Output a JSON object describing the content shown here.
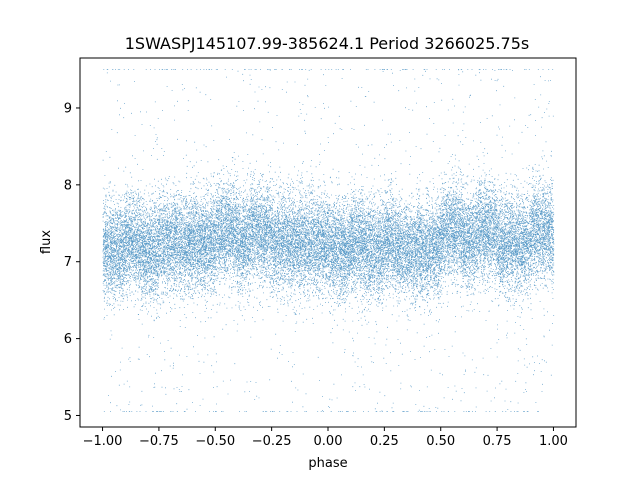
{
  "chart_data": {
    "type": "scatter",
    "title": "1SWASPJ145107.99-385624.1 Period 3266025.75s",
    "xlabel": "phase",
    "ylabel": "flux",
    "xlim": [
      -1.1,
      1.1
    ],
    "ylim": [
      4.85,
      9.65
    ],
    "x_ticks": [
      -1.0,
      -0.75,
      -0.5,
      -0.25,
      0.0,
      0.25,
      0.5,
      0.75,
      1.0
    ],
    "x_tick_labels": [
      "−1.00",
      "−0.75",
      "−0.50",
      "−0.25",
      "0.00",
      "0.25",
      "0.50",
      "0.75",
      "1.00"
    ],
    "y_ticks": [
      5,
      6,
      7,
      8,
      9
    ],
    "y_tick_labels": [
      "5",
      "6",
      "7",
      "8",
      "9"
    ],
    "grid": false,
    "legend": "none",
    "marker_color": "#1f77b4",
    "series": [
      {
        "points_estimated_count": 30000,
        "x_range": [
          -1.0,
          1.0
        ],
        "core_band": [
          6.6,
          7.85
        ],
        "median_flux": 7.25,
        "outlier_range": [
          5.05,
          9.5
        ],
        "brighter_phase_bins": [
          -0.45,
          -0.3,
          0.55,
          0.7,
          0.95
        ],
        "fainter_phase_bins": [
          -0.95,
          -0.8,
          0.05,
          0.2,
          0.35,
          0.45
        ]
      }
    ]
  }
}
